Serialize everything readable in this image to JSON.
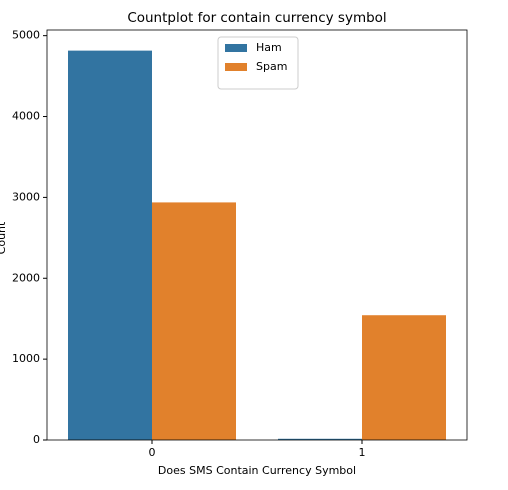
{
  "chart_data": {
    "type": "bar",
    "title": "Countplot for contain currency symbol",
    "x_label": "Does SMS Contain Currency Symbol",
    "y_label": "Count",
    "categories": [
      "0",
      "1"
    ],
    "series": [
      {
        "name": "Ham",
        "color": "#3274a1",
        "values": [
          4815,
          15
        ]
      },
      {
        "name": "Spam",
        "color": "#e1812c",
        "values": [
          2938,
          1543
        ]
      }
    ],
    "ylim": [
      0,
      5070
    ],
    "yticks": [
      0,
      1000,
      2000,
      3000,
      4000,
      5000
    ],
    "legend": "upper center",
    "grid": false
  }
}
